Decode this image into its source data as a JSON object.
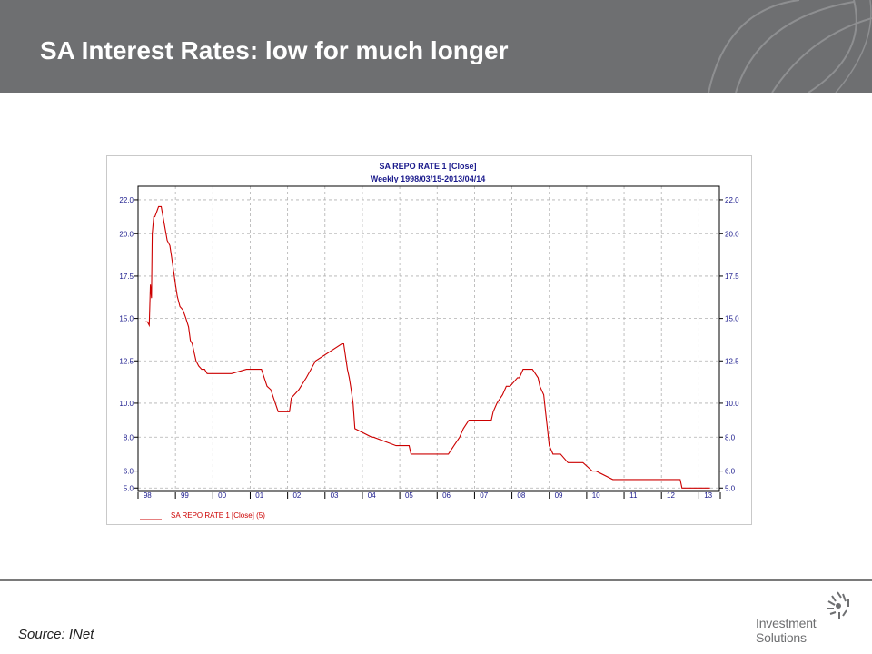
{
  "slide": {
    "title": "SA Interest Rates: low for much longer",
    "source": "Source: INet"
  },
  "logo": {
    "line1": "Investment",
    "line2": "Solutions"
  },
  "colors": {
    "header_bg": "#6e6f71",
    "series": "#cc0000",
    "chart_text": "#1a1a8c",
    "legend_text": "#cc0000"
  },
  "chart_data": {
    "type": "line",
    "title": "SA REPO RATE 1 [Close]",
    "subtitle": "Weekly 1998/03/15-2013/04/14",
    "xlabel": "",
    "ylabel": "",
    "grid": true,
    "legend_position": "bottom-left",
    "xlim": [
      1998.0,
      2013.55
    ],
    "ylim": [
      4.8,
      22.8
    ],
    "y_ticks": [
      5.0,
      6.0,
      8.0,
      10.0,
      12.5,
      15.0,
      17.5,
      20.0,
      22.0
    ],
    "y_tick_labels": [
      "5.0",
      "6.0",
      "8.0",
      "10.0",
      "12.5",
      "15.0",
      "17.5",
      "20.0",
      "22.0"
    ],
    "x_tick_labels": [
      "98",
      "99",
      "00",
      "01",
      "02",
      "03",
      "04",
      "05",
      "06",
      "07",
      "08",
      "09",
      "10",
      "11",
      "12",
      "13"
    ],
    "x_tick_positions": [
      1998.25,
      1999.25,
      2000.25,
      2001.25,
      2002.25,
      2003.25,
      2004.25,
      2005.25,
      2006.25,
      2007.25,
      2008.25,
      2009.25,
      2010.25,
      2011.25,
      2012.25,
      2013.25
    ],
    "series": [
      {
        "name": "SA REPO RATE 1 [Close] (5)",
        "x": [
          1998.2,
          1998.25,
          1998.3,
          1998.33,
          1998.36,
          1998.38,
          1998.42,
          1998.45,
          1998.5,
          1998.55,
          1998.62,
          1998.7,
          1998.78,
          1998.85,
          1998.9,
          1998.95,
          1999.0,
          1999.05,
          1999.12,
          1999.2,
          1999.28,
          1999.35,
          1999.4,
          1999.45,
          1999.5,
          1999.55,
          1999.62,
          1999.7,
          1999.78,
          1999.85,
          1999.9,
          1999.95,
          2000.0,
          2000.5,
          2000.9,
          2001.0,
          2001.3,
          2001.45,
          2001.55,
          2001.75,
          2001.8,
          2002.05,
          2002.1,
          2002.3,
          2002.5,
          2002.7,
          2002.75,
          2003.45,
          2003.5,
          2003.6,
          2003.65,
          2003.7,
          2003.75,
          2003.8,
          2004.25,
          2004.3,
          2004.9,
          2005.25,
          2005.3,
          2006.3,
          2006.45,
          2006.6,
          2006.7,
          2006.85,
          2006.95,
          2007.45,
          2007.5,
          2007.6,
          2007.75,
          2007.85,
          2007.95,
          2008.15,
          2008.2,
          2008.3,
          2008.5,
          2008.55,
          2008.7,
          2008.75,
          2008.85,
          2008.9,
          2008.95,
          2009.0,
          2009.1,
          2009.25,
          2009.3,
          2009.5,
          2009.55,
          2009.9,
          2010.15,
          2010.25,
          2010.7,
          2010.75,
          2010.85,
          2010.9,
          2012.5,
          2012.55,
          2013.3
        ],
        "values": [
          14.8,
          14.8,
          14.6,
          17.0,
          16.2,
          20.0,
          21.0,
          21.0,
          21.3,
          21.6,
          21.6,
          20.6,
          19.6,
          19.3,
          18.6,
          17.8,
          17.0,
          16.3,
          15.7,
          15.5,
          15.0,
          14.5,
          13.7,
          13.5,
          13.0,
          12.5,
          12.2,
          12.0,
          12.0,
          11.75,
          11.75,
          11.75,
          11.75,
          11.75,
          12.0,
          12.0,
          12.0,
          11.0,
          10.8,
          9.5,
          9.5,
          9.5,
          10.3,
          10.8,
          11.5,
          12.3,
          12.5,
          13.5,
          13.5,
          12.0,
          11.5,
          10.8,
          10.0,
          8.5,
          8.0,
          8.0,
          7.5,
          7.5,
          7.0,
          7.0,
          7.5,
          8.0,
          8.5,
          9.0,
          9.0,
          9.0,
          9.5,
          10.0,
          10.5,
          11.0,
          11.0,
          11.5,
          11.5,
          12.0,
          12.0,
          12.0,
          11.5,
          11.0,
          10.5,
          9.5,
          8.5,
          7.5,
          7.0,
          7.0,
          7.0,
          6.5,
          6.5,
          6.5,
          6.0,
          6.0,
          5.5,
          5.5,
          5.5,
          5.5,
          5.5,
          5.0,
          5.0
        ]
      }
    ]
  }
}
